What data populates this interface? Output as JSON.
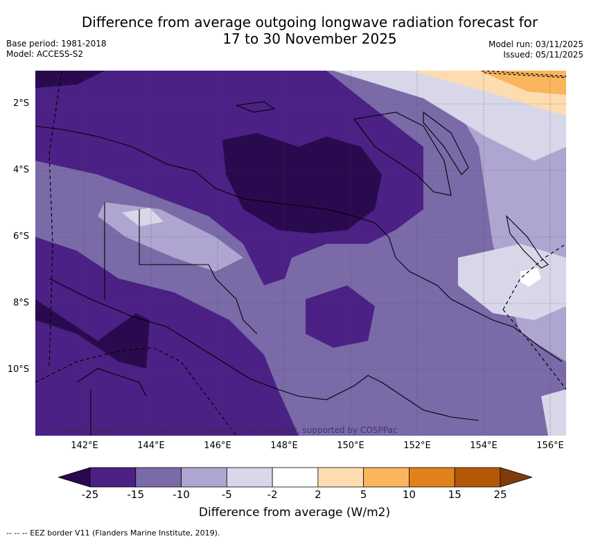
{
  "title": {
    "line1": "Difference from average outgoing longwave radiation forecast for",
    "line2": "17 to 30 November 2025"
  },
  "meta": {
    "base_period": "Base period: 1981-2018",
    "model": "Model: ACCESS-S2",
    "model_run": "Model run: 03/11/2025",
    "issued": "Issued: 05/11/2025"
  },
  "axes": {
    "lat_labels": [
      "2°S",
      "4°S",
      "6°S",
      "8°S",
      "10°S"
    ],
    "lon_labels": [
      "142°E",
      "144°E",
      "146°E",
      "148°E",
      "150°E",
      "152°E",
      "154°E",
      "156°E"
    ]
  },
  "colorbar": {
    "ticks": [
      "-25",
      "-15",
      "-10",
      "-5",
      "-2",
      "2",
      "5",
      "10",
      "15",
      "25"
    ],
    "colors": [
      "#2a0a4e",
      "#4b2185",
      "#7a6aa8",
      "#aea6d0",
      "#d7d7e9",
      "#ffffff",
      "#fddcb0",
      "#fbb55e",
      "#e1811c",
      "#b35708",
      "#7f3b08"
    ],
    "label": "Difference from average (W/m2)"
  },
  "copyright": "© Commonwealth of Australia 2025, Bureau of Meteorology, supported by COSPPac",
  "footnote": "-- -- -- EEZ border V11 (Flanders Marine Institute, 2019)."
}
